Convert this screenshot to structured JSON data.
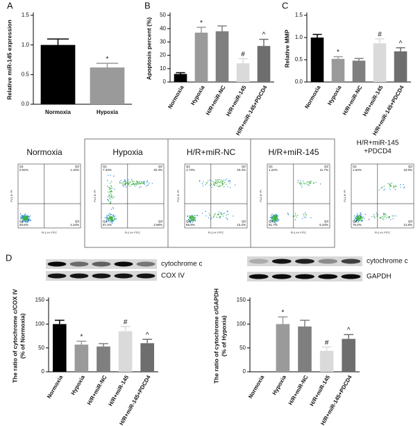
{
  "panels": [
    "A",
    "B",
    "C",
    "D"
  ],
  "chart_data": [
    {
      "type": "bar",
      "ylabel": "Relative miR-145 expression",
      "categories": [
        "Normoxia",
        "Hypoxia"
      ],
      "values": [
        1.0,
        0.62
      ],
      "errors": [
        0.1,
        0.07
      ],
      "colors": [
        "#000000",
        "#9a9a9a"
      ],
      "annotations": [
        null,
        "*"
      ],
      "ylim": [
        0,
        1.5
      ],
      "yticks": [
        {
          "value": 0,
          "label": "0.0"
        },
        {
          "value": 0.5,
          "label": "0.5"
        },
        {
          "value": 1,
          "label": "1.0"
        },
        {
          "value": 1.5,
          "label": "1.5"
        }
      ]
    },
    {
      "type": "bar",
      "ylabel": "Apoptosis percent (%)",
      "categories": [
        "Normoxia",
        "Hypoxia",
        "H/R+miR-NC",
        "H/R+miR-145",
        "H/R+miR-145+PDCD4"
      ],
      "values": [
        6,
        37,
        38,
        14,
        27
      ],
      "errors": [
        1,
        4,
        4,
        3.5,
        5
      ],
      "colors": [
        "#000000",
        "#9a9a9a",
        "#7f7f7f",
        "#dadada",
        "#6e6e6e"
      ],
      "annotations": [
        null,
        "*",
        null,
        "#",
        "^"
      ],
      "ylim": [
        0,
        50
      ],
      "yticks": [
        0,
        10,
        20,
        30,
        40,
        50
      ]
    },
    {
      "type": "bar",
      "ylabel": "Relative MMP",
      "categories": [
        "Normoxia",
        "Hypoxia",
        "H/R+miR-NC",
        "H/R+miR-145",
        "H/R+miR-145+PDCD4"
      ],
      "values": [
        1.0,
        0.52,
        0.48,
        0.87,
        0.69
      ],
      "errors": [
        0.07,
        0.05,
        0.05,
        0.1,
        0.08
      ],
      "colors": [
        "#000000",
        "#9a9a9a",
        "#7f7f7f",
        "#dadada",
        "#6e6e6e"
      ],
      "annotations": [
        null,
        "*",
        null,
        "#",
        "^"
      ],
      "ylim": [
        0,
        1.5
      ],
      "yticks": [
        {
          "value": 0,
          "label": "0.0"
        },
        {
          "value": 0.5,
          "label": "0.5"
        },
        {
          "value": 1,
          "label": "1.0"
        },
        {
          "value": 1.5,
          "label": "1.5"
        }
      ]
    },
    {
      "type": "bar",
      "ylabel": [
        "The ratio of cytochrome c/COX IV",
        "(% of Normoxia)"
      ],
      "categories": [
        "Normoxia",
        "Hypoxia",
        "H/R+miR-NC",
        "H/R+miR-145",
        "H/R+miR-145+PDCD4"
      ],
      "values": [
        100,
        57,
        53,
        85,
        60
      ],
      "errors": [
        8,
        7,
        6,
        10,
        8
      ],
      "colors": [
        "#000000",
        "#9a9a9a",
        "#7f7f7f",
        "#dadada",
        "#6e6e6e"
      ],
      "annotations": [
        null,
        "*",
        null,
        "#",
        "^"
      ],
      "ylim": [
        0,
        150
      ],
      "yticks": [
        0,
        50,
        100,
        150
      ]
    },
    {
      "type": "bar",
      "ylabel": [
        "The ratio of cytochrome c/GAPDH",
        "(% of Hypoxia)"
      ],
      "categories": [
        "Normoxia",
        "Hypoxia",
        "H/R+miR-NC",
        "H/R+miR-145",
        "H/R+miR-145+PDCD4"
      ],
      "values": [
        null,
        100,
        95,
        44,
        69
      ],
      "errors": [
        null,
        15,
        13,
        8,
        9
      ],
      "colors": [
        "#000000",
        "#9a9a9a",
        "#7f7f7f",
        "#dadada",
        "#6e6e6e"
      ],
      "annotations": [
        null,
        "*",
        null,
        "#",
        "^"
      ],
      "ylim": [
        0,
        150
      ],
      "yticks": [
        0,
        50,
        100,
        150
      ]
    }
  ],
  "flow": {
    "x_label": "FL1-H: FITC",
    "y_label": "FL2-H: PI",
    "quadrant_names": [
      "Q1",
      "Q2",
      "Q3",
      "Q4"
    ],
    "panels": [
      {
        "title": [
          "Normoxia"
        ],
        "percents": [
          "0.02%",
          "1.10%",
          "4.34%",
          "93.6%"
        ]
      },
      {
        "title": [
          "Hypoxia"
        ],
        "percents": [
          "7.43%",
          "32.4%",
          "2.98%",
          "57.2%"
        ]
      },
      {
        "title": [
          "H/R+miR-NC"
        ],
        "percents": [
          "1.73%",
          "23.4%",
          "13.2%",
          "55.9%"
        ]
      },
      {
        "title": [
          "H/R+miR-145"
        ],
        "percents": [
          "1.24%",
          "11.7%",
          "5.34%",
          "81.7%"
        ]
      },
      {
        "title": [
          "H/R+miR-145",
          "+PDCD4"
        ],
        "percents": [
          "1.54%",
          "10.6%",
          "12.8%",
          "76.0%"
        ]
      }
    ]
  },
  "blots": {
    "left": [
      "cytochrome c",
      "COX IV"
    ],
    "right": [
      "cytochrome c",
      "GAPDH"
    ]
  }
}
